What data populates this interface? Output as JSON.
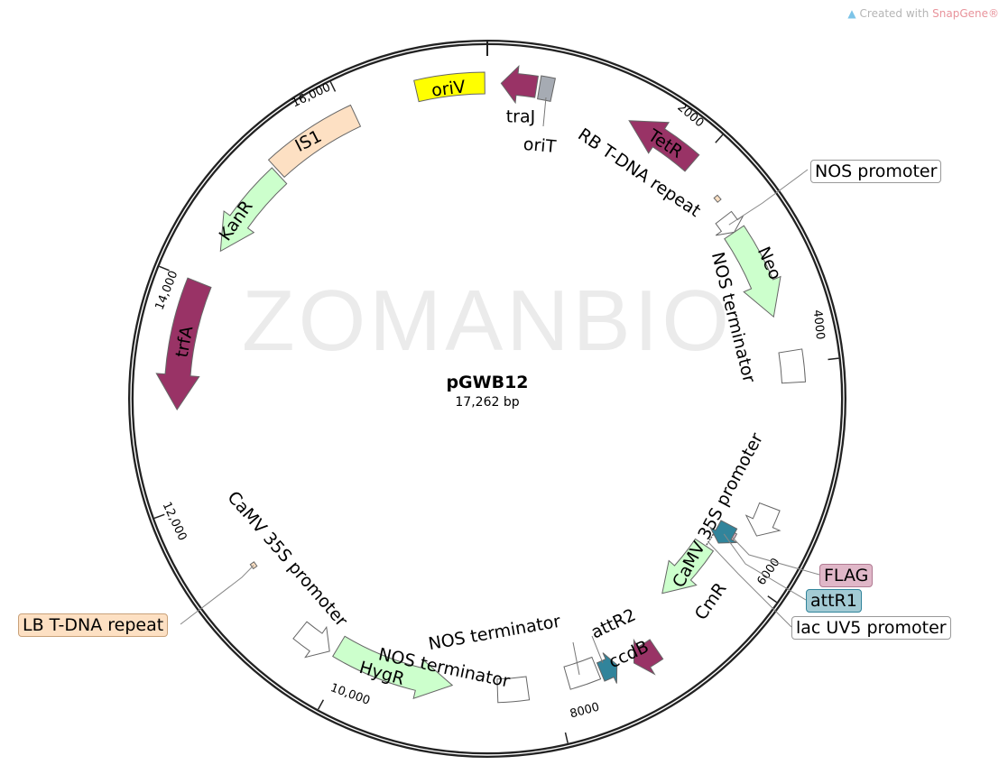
{
  "credit": {
    "prefix": "Created with ",
    "brand": "SnapGene®",
    "icon": "snapgene-logo-icon"
  },
  "watermark": "ZOMANBIO",
  "plasmid": {
    "name": "pGWB12",
    "length_label": "17,262 bp",
    "length_bp": 17262
  },
  "ticks": [
    {
      "bp": 2000,
      "label": "2000"
    },
    {
      "bp": 4000,
      "label": "4000"
    },
    {
      "bp": 6000,
      "label": "6000"
    },
    {
      "bp": 8000,
      "label": "8000"
    },
    {
      "bp": 10000,
      "label": "10,000"
    },
    {
      "bp": 12000,
      "label": "12,000"
    },
    {
      "bp": 14000,
      "label": "14,000"
    },
    {
      "bp": 16000,
      "label": "16,000"
    }
  ],
  "features": [
    {
      "label": "oriV",
      "start": 16640,
      "end": 17240,
      "shape": "box",
      "direction": "none",
      "color": "#ffff00"
    },
    {
      "label": "traJ",
      "start": 120,
      "end": 430,
      "shape": "arrow",
      "direction": "reverse",
      "color": "#993366"
    },
    {
      "label": "oriT",
      "start": 455,
      "end": 575,
      "shape": "box",
      "direction": "none",
      "color": "#a6abb3"
    },
    {
      "label": "TetR",
      "start": 1295,
      "end": 1965,
      "shape": "arrow",
      "direction": "reverse",
      "color": "#993366"
    },
    {
      "label": "RB T-DNA repeat",
      "start": 2325,
      "end": 2375,
      "shape": "bar",
      "direction": "none",
      "color": "#fde0c3"
    },
    {
      "label": "NOS promoter",
      "start": 2517,
      "end": 2685,
      "shape": "arrow",
      "direction": "forward",
      "color": "#ffffff"
    },
    {
      "label": "Neo",
      "start": 2685,
      "end": 3550,
      "shape": "arrow",
      "direction": "forward",
      "color": "#ccffcc"
    },
    {
      "label": "NOS terminator",
      "start": 3885,
      "end": 4170,
      "shape": "box",
      "direction": "none",
      "color": "#ffffff"
    },
    {
      "label": "CaMV 35S promoter",
      "start": 5320,
      "end": 5610,
      "shape": "arrow",
      "direction": "forward",
      "color": "#ffffff"
    },
    {
      "label": "FLAG",
      "start": 5680,
      "end": 5780,
      "shape": "bar",
      "direction": "none",
      "color": "#e0b7c8"
    },
    {
      "label": "attR1",
      "start": 5635,
      "end": 5850,
      "shape": "arrow",
      "direction": "forward",
      "color": "#31849b"
    },
    {
      "label": "lac UV5 promoter",
      "start": 5800,
      "end": 5995,
      "shape": "line",
      "direction": "none",
      "color": "#ffffff"
    },
    {
      "label": "CmR",
      "start": 5945,
      "end": 6620,
      "shape": "arrow",
      "direction": "forward",
      "color": "#ccffcc"
    },
    {
      "label": "ccdB",
      "start": 7000,
      "end": 7240,
      "shape": "arrow",
      "direction": "forward",
      "color": "#993366"
    },
    {
      "label": "attR2",
      "start": 7385,
      "end": 7550,
      "shape": "arrow",
      "direction": "reverse",
      "color": "#31849b"
    },
    {
      "label": "NOS terminator",
      "start": 7575,
      "end": 7865,
      "shape": "box",
      "direction": "none",
      "color": "#ffffff"
    },
    {
      "label": "NOS terminator",
      "start": 8250,
      "end": 8535,
      "shape": "box",
      "direction": "none",
      "color": "#ffffff"
    },
    {
      "label": "HygR",
      "start": 8965,
      "end": 10115,
      "shape": "arrow",
      "direction": "reverse",
      "color": "#ccffcc"
    },
    {
      "label": "CaMV 35S promoter",
      "start": 10165,
      "end": 10500,
      "shape": "arrow",
      "direction": "reverse",
      "color": "#ffffff"
    },
    {
      "label": "LB T-DNA repeat",
      "start": 11220,
      "end": 11270,
      "shape": "bar",
      "direction": "none",
      "color": "#fde0c3"
    },
    {
      "label": "trfA",
      "start": 12850,
      "end": 14000,
      "shape": "arrow",
      "direction": "reverse",
      "color": "#993366"
    },
    {
      "label": "KanR",
      "start": 14335,
      "end": 15200,
      "shape": "arrow",
      "direction": "reverse",
      "color": "#ccffcc"
    },
    {
      "label": "IS1",
      "start": 15225,
      "end": 16065,
      "shape": "box",
      "direction": "none",
      "color": "#fde0c3"
    }
  ]
}
